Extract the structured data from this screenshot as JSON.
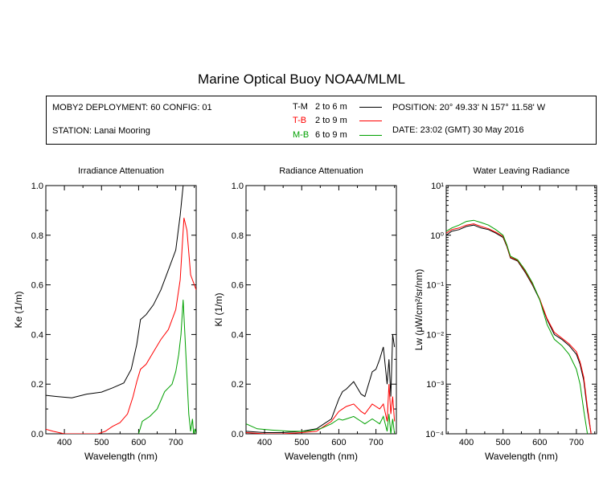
{
  "title": "Marine Optical Buoy NOAA/MLML",
  "info": {
    "deployment": "MOBY2 DEPLOYMENT: 60 CONFIG: 01",
    "station": "STATION: Lanai Mooring",
    "position": "POSITION: 20° 49.33' N   157° 11.58' W",
    "date": "DATE: 23:02 (GMT) 30 May 2016",
    "legend": [
      {
        "code": "T-M",
        "range": "2 to 6  m",
        "color": "#000000"
      },
      {
        "code": "T-B",
        "range": "2 to 9  m",
        "color": "#ff0000"
      },
      {
        "code": "M-B",
        "range": "6 to 9  m",
        "color": "#00a000"
      }
    ]
  },
  "chart_data": [
    {
      "type": "line",
      "title": "Irradiance Attenuation",
      "xlabel": "Wavelength (nm)",
      "ylabel": "Ke  (1/m)",
      "xlim": [
        350,
        755
      ],
      "ylim": [
        0.0,
        1.0
      ],
      "xticks": [
        400,
        500,
        600,
        700
      ],
      "yticks": [
        0.0,
        0.2,
        0.4,
        0.6,
        0.8,
        1.0
      ],
      "ytick_labels": [
        "0.0",
        "0.2",
        "0.4",
        "0.6",
        "0.8",
        "1.0"
      ],
      "series": [
        {
          "name": "T-M",
          "color": "#000000",
          "x": [
            350,
            380,
            420,
            460,
            500,
            530,
            560,
            580,
            595,
            605,
            620,
            640,
            660,
            680,
            700,
            712,
            720
          ],
          "y": [
            0.155,
            0.15,
            0.145,
            0.16,
            0.168,
            0.185,
            0.205,
            0.26,
            0.36,
            0.46,
            0.48,
            0.52,
            0.58,
            0.66,
            0.74,
            0.88,
            1.0
          ]
        },
        {
          "name": "T-B",
          "color": "#ff0000",
          "x": [
            350,
            370,
            400,
            450,
            490,
            510,
            530,
            550,
            570,
            585,
            595,
            605,
            620,
            640,
            660,
            680,
            700,
            712,
            722,
            730,
            740,
            750,
            755
          ],
          "y": [
            0.018,
            0.01,
            0.0,
            0.0,
            0.0,
            0.01,
            0.03,
            0.045,
            0.08,
            0.15,
            0.21,
            0.26,
            0.28,
            0.33,
            0.38,
            0.42,
            0.5,
            0.62,
            0.87,
            0.82,
            0.64,
            0.6,
            0.58
          ]
        },
        {
          "name": "M-B",
          "color": "#00a000",
          "x": [
            600,
            610,
            630,
            650,
            670,
            690,
            700,
            708,
            714,
            720,
            728,
            735,
            740,
            745,
            748,
            752,
            755
          ],
          "y": [
            0.0,
            0.05,
            0.07,
            0.1,
            0.17,
            0.2,
            0.25,
            0.32,
            0.4,
            0.54,
            0.3,
            0.08,
            0.01,
            0.06,
            0.0,
            0.02,
            0.0
          ]
        }
      ]
    },
    {
      "type": "line",
      "title": "Radiance Attenuation",
      "xlabel": "Wavelength (nm)",
      "ylabel": "Kl  (1/m)",
      "xlim": [
        350,
        755
      ],
      "ylim": [
        0.0,
        1.0
      ],
      "xticks": [
        400,
        500,
        600,
        700
      ],
      "yticks": [
        0.0,
        0.2,
        0.4,
        0.6,
        0.8,
        1.0
      ],
      "ytick_labels": [
        "0.0",
        "0.2",
        "0.4",
        "0.6",
        "0.8",
        "1.0"
      ],
      "series": [
        {
          "name": "T-M",
          "color": "#000000",
          "x": [
            350,
            400,
            450,
            500,
            540,
            560,
            580,
            590,
            600,
            610,
            620,
            640,
            660,
            670,
            680,
            690,
            700,
            710,
            720,
            730,
            735,
            740,
            745,
            750
          ],
          "y": [
            0.01,
            0.005,
            0.005,
            0.01,
            0.02,
            0.04,
            0.06,
            0.1,
            0.14,
            0.17,
            0.18,
            0.21,
            0.16,
            0.15,
            0.2,
            0.25,
            0.26,
            0.3,
            0.35,
            0.2,
            0.3,
            0.15,
            0.4,
            0.35
          ]
        },
        {
          "name": "T-B",
          "color": "#ff0000",
          "x": [
            350,
            400,
            450,
            500,
            540,
            560,
            580,
            590,
            600,
            610,
            620,
            640,
            660,
            670,
            680,
            690,
            700,
            710,
            720,
            730,
            735,
            740,
            745,
            750
          ],
          "y": [
            0.005,
            0.0,
            0.0,
            0.005,
            0.01,
            0.03,
            0.05,
            0.07,
            0.09,
            0.1,
            0.11,
            0.12,
            0.09,
            0.08,
            0.1,
            0.12,
            0.11,
            0.1,
            0.12,
            0.05,
            0.2,
            0.08,
            0.15,
            0.05
          ]
        },
        {
          "name": "M-B",
          "color": "#00a000",
          "x": [
            350,
            380,
            420,
            470,
            510,
            550,
            580,
            590,
            600,
            610,
            620,
            640,
            660,
            670,
            680,
            690,
            700,
            710,
            720,
            730,
            735,
            740,
            745,
            750
          ],
          "y": [
            0.04,
            0.02,
            0.015,
            0.01,
            0.01,
            0.02,
            0.04,
            0.05,
            0.06,
            0.055,
            0.06,
            0.07,
            0.05,
            0.04,
            0.05,
            0.06,
            0.05,
            0.04,
            0.07,
            0.01,
            0.08,
            0.0,
            0.06,
            0.0
          ]
        }
      ]
    },
    {
      "type": "line",
      "title": "Water Leaving Radiance",
      "xlabel": "Wavelength (nm)",
      "ylabel": "Lw  (μW/cm²/sr/nm)",
      "xlim": [
        345,
        755
      ],
      "ylim": [
        0.0001,
        10
      ],
      "yscale": "log",
      "xticks": [
        400,
        500,
        600,
        700
      ],
      "yticks": [
        0.0001,
        0.001,
        0.01,
        0.1,
        1,
        10
      ],
      "ytick_labels": [
        "10⁻⁴",
        "10⁻³",
        "10⁻²",
        "10⁻¹",
        "10⁰",
        "10¹"
      ],
      "series": [
        {
          "name": "T-M",
          "color": "#000000",
          "x": [
            345,
            360,
            380,
            400,
            420,
            440,
            460,
            480,
            500,
            510,
            520,
            540,
            560,
            580,
            600,
            620,
            640,
            660,
            680,
            700,
            710,
            720,
            730,
            740,
            745
          ],
          "y": [
            1.0,
            1.2,
            1.3,
            1.5,
            1.6,
            1.4,
            1.3,
            1.1,
            0.9,
            0.6,
            0.35,
            0.3,
            0.18,
            0.1,
            0.05,
            0.02,
            0.01,
            0.008,
            0.006,
            0.004,
            0.0025,
            0.0012,
            0.0003,
            0.0001,
            5e-05
          ]
        },
        {
          "name": "T-B",
          "color": "#ff0000",
          "x": [
            345,
            360,
            380,
            400,
            420,
            440,
            460,
            480,
            500,
            510,
            520,
            540,
            560,
            580,
            600,
            620,
            640,
            660,
            680,
            700,
            710,
            720,
            730,
            740,
            745
          ],
          "y": [
            1.1,
            1.3,
            1.4,
            1.6,
            1.7,
            1.5,
            1.35,
            1.15,
            0.95,
            0.62,
            0.36,
            0.31,
            0.19,
            0.105,
            0.052,
            0.021,
            0.011,
            0.0085,
            0.0065,
            0.0045,
            0.0028,
            0.0014,
            0.00035,
            0.0001,
            5e-05
          ]
        },
        {
          "name": "M-B",
          "color": "#00a000",
          "x": [
            345,
            360,
            380,
            400,
            420,
            440,
            460,
            480,
            500,
            510,
            520,
            540,
            560,
            580,
            600,
            620,
            640,
            660,
            680,
            700,
            710,
            720,
            730,
            740
          ],
          "y": [
            1.2,
            1.4,
            1.6,
            1.9,
            2.0,
            1.8,
            1.6,
            1.3,
            1.0,
            0.65,
            0.38,
            0.32,
            0.2,
            0.11,
            0.05,
            0.016,
            0.008,
            0.006,
            0.004,
            0.002,
            0.001,
            0.0003,
            0.0001,
            5e-05
          ]
        }
      ]
    }
  ]
}
